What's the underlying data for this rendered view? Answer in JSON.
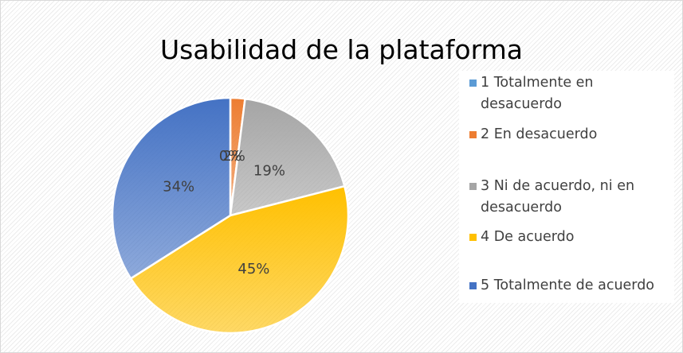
{
  "chart_data": {
    "type": "pie",
    "title": "Usabilidad de la plataforma",
    "categories": [
      "1 Totalmente en desacuerdo",
      "2 En desacuerdo",
      "3 Ni de acuerdo, ni en desacuerdo",
      "4 De acuerdo",
      "5 Totalmente de acuerdo"
    ],
    "values": [
      0,
      2,
      19,
      45,
      34
    ],
    "value_labels": [
      "0%",
      "2%",
      "19%",
      "45%",
      "34%"
    ],
    "colors": [
      "#5b9bd5",
      "#ed7d31",
      "#a5a5a5",
      "#ffc000",
      "#4472c4"
    ],
    "legend": "right"
  }
}
